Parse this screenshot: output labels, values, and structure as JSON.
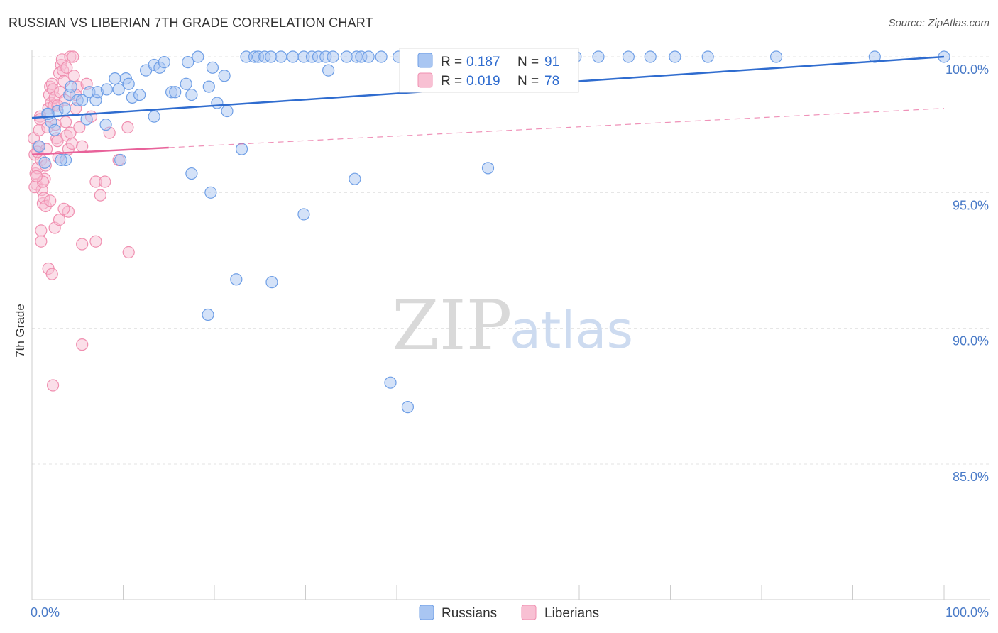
{
  "header": {
    "title": "RUSSIAN VS LIBERIAN 7TH GRADE CORRELATION CHART",
    "source": "Source: ZipAtlas.com"
  },
  "watermark": {
    "zip": "ZIP",
    "atlas": "atlas"
  },
  "colors": {
    "russians": "#6f9fe6",
    "russians_line": "#2f6ccf",
    "liberians": "#f08fb0",
    "liberians_line": "#e8629a",
    "tick_label": "#4a7bc8",
    "grid": "#e3e3e3"
  },
  "legend": {
    "russians": {
      "r_label": "R =",
      "r_value": "0.187",
      "n_label": "N =",
      "n_value": "91"
    },
    "liberians": {
      "r_label": "R =",
      "r_value": "0.019",
      "n_label": "N =",
      "n_value": "78"
    }
  },
  "chart_data": {
    "type": "scatter",
    "title": "RUSSIAN VS LIBERIAN 7TH GRADE CORRELATION CHART",
    "xlabel": "",
    "ylabel": "7th Grade",
    "xlim": [
      0,
      100
    ],
    "ylim": [
      80.5,
      100.5
    ],
    "x_tick_labels": [
      {
        "value": 0,
        "label": "0.0%"
      },
      {
        "value": 100,
        "label": "100.0%"
      }
    ],
    "x_minor_ticks": [
      10,
      20,
      30,
      40,
      50,
      60,
      70,
      80,
      90
    ],
    "y_ticks": [
      {
        "value": 100,
        "label": "100.0%"
      },
      {
        "value": 95,
        "label": "95.0%"
      },
      {
        "value": 90,
        "label": "90.0%"
      },
      {
        "value": 85,
        "label": "85.0%"
      }
    ],
    "series": [
      {
        "name": "Russians",
        "r": 0.187,
        "n": 91,
        "trend": {
          "x0": 0,
          "y0": 97.75,
          "x1": 100,
          "y1": 100.0,
          "solid_to": 100
        },
        "points": [
          [
            0.8,
            96.7
          ],
          [
            1.4,
            96.1
          ],
          [
            1.7,
            97.9
          ],
          [
            2.1,
            97.6
          ],
          [
            2.8,
            98.0
          ],
          [
            2.5,
            97.3
          ],
          [
            3.6,
            98.1
          ],
          [
            4.1,
            98.6
          ],
          [
            4.3,
            98.9
          ],
          [
            5.0,
            98.4
          ],
          [
            5.5,
            98.4
          ],
          [
            6.3,
            98.7
          ],
          [
            7.0,
            98.4
          ],
          [
            7.2,
            98.7
          ],
          [
            8.2,
            98.8
          ],
          [
            9.1,
            99.2
          ],
          [
            9.5,
            98.8
          ],
          [
            10.3,
            99.2
          ],
          [
            10.6,
            99.0
          ],
          [
            11.0,
            98.5
          ],
          [
            11.8,
            98.6
          ],
          [
            12.5,
            99.5
          ],
          [
            13.4,
            99.7
          ],
          [
            14.0,
            99.6
          ],
          [
            14.5,
            99.8
          ],
          [
            15.3,
            98.7
          ],
          [
            15.7,
            98.7
          ],
          [
            16.9,
            99.0
          ],
          [
            17.1,
            99.8
          ],
          [
            17.5,
            98.6
          ],
          [
            18.2,
            100.0
          ],
          [
            19.4,
            98.9
          ],
          [
            19.8,
            99.6
          ],
          [
            20.3,
            98.3
          ],
          [
            21.1,
            99.3
          ],
          [
            21.4,
            98.0
          ],
          [
            23.0,
            96.6
          ],
          [
            23.5,
            100.0
          ],
          [
            24.4,
            100.0
          ],
          [
            24.8,
            100.0
          ],
          [
            25.5,
            100.0
          ],
          [
            26.2,
            100.0
          ],
          [
            27.3,
            100.0
          ],
          [
            28.6,
            100.0
          ],
          [
            29.8,
            100.0
          ],
          [
            30.7,
            100.0
          ],
          [
            31.4,
            100.0
          ],
          [
            32.2,
            100.0
          ],
          [
            33.0,
            100.0
          ],
          [
            34.5,
            100.0
          ],
          [
            35.6,
            100.0
          ],
          [
            36.1,
            100.0
          ],
          [
            36.9,
            100.0
          ],
          [
            38.3,
            100.0
          ],
          [
            40.2,
            100.0
          ],
          [
            42.8,
            100.0
          ],
          [
            43.3,
            100.0
          ],
          [
            45.0,
            100.0
          ],
          [
            48.1,
            100.0
          ],
          [
            50.2,
            100.0
          ],
          [
            52.0,
            100.0
          ],
          [
            52.6,
            100.0
          ],
          [
            54.3,
            100.0
          ],
          [
            57.0,
            100.0
          ],
          [
            59.6,
            100.0
          ],
          [
            62.1,
            100.0
          ],
          [
            65.4,
            100.0
          ],
          [
            67.8,
            100.0
          ],
          [
            70.5,
            100.0
          ],
          [
            74.1,
            100.0
          ],
          [
            81.6,
            100.0
          ],
          [
            92.4,
            100.0
          ],
          [
            100.0,
            100.0
          ],
          [
            1.8,
            97.9
          ],
          [
            3.7,
            96.2
          ],
          [
            6.0,
            97.7
          ],
          [
            8.1,
            97.5
          ],
          [
            13.4,
            97.8
          ],
          [
            9.7,
            96.2
          ],
          [
            17.5,
            95.7
          ],
          [
            19.6,
            95.0
          ],
          [
            29.8,
            94.2
          ],
          [
            35.4,
            95.5
          ],
          [
            50.0,
            95.9
          ],
          [
            22.4,
            91.8
          ],
          [
            26.3,
            91.7
          ],
          [
            19.3,
            90.5
          ],
          [
            39.3,
            88.0
          ],
          [
            41.2,
            87.1
          ],
          [
            32.5,
            99.5
          ],
          [
            3.2,
            96.2
          ]
        ]
      },
      {
        "name": "Liberians",
        "r": 0.019,
        "n": 78,
        "trend": {
          "x0": 0,
          "y0": 96.4,
          "x1": 100,
          "y1": 98.1,
          "solid_to": 15
        },
        "points": [
          [
            0.2,
            97.0
          ],
          [
            0.3,
            96.4
          ],
          [
            0.4,
            95.7
          ],
          [
            0.5,
            95.3
          ],
          [
            0.6,
            95.9
          ],
          [
            0.7,
            96.7
          ],
          [
            0.8,
            97.3
          ],
          [
            0.9,
            97.8
          ],
          [
            1.0,
            96.2
          ],
          [
            1.1,
            95.1
          ],
          [
            1.2,
            94.6
          ],
          [
            1.3,
            94.8
          ],
          [
            1.4,
            95.5
          ],
          [
            1.5,
            96.0
          ],
          [
            1.6,
            96.6
          ],
          [
            1.7,
            97.4
          ],
          [
            1.8,
            98.1
          ],
          [
            1.9,
            98.6
          ],
          [
            2.0,
            98.9
          ],
          [
            2.1,
            98.3
          ],
          [
            2.2,
            99.0
          ],
          [
            2.3,
            98.8
          ],
          [
            2.4,
            98.2
          ],
          [
            2.5,
            98.5
          ],
          [
            2.6,
            97.5
          ],
          [
            2.7,
            97.0
          ],
          [
            2.8,
            96.9
          ],
          [
            2.9,
            96.3
          ],
          [
            3.0,
            99.4
          ],
          [
            3.1,
            98.7
          ],
          [
            3.2,
            99.7
          ],
          [
            3.3,
            99.9
          ],
          [
            3.4,
            99.5
          ],
          [
            3.5,
            99.1
          ],
          [
            3.6,
            98.4
          ],
          [
            3.7,
            97.6
          ],
          [
            3.8,
            97.1
          ],
          [
            4.0,
            96.6
          ],
          [
            4.2,
            97.2
          ],
          [
            4.4,
            96.8
          ],
          [
            4.6,
            99.3
          ],
          [
            4.8,
            98.1
          ],
          [
            5.0,
            98.9
          ],
          [
            5.2,
            97.4
          ],
          [
            5.5,
            96.7
          ],
          [
            6.0,
            99.0
          ],
          [
            6.5,
            97.8
          ],
          [
            7.0,
            95.4
          ],
          [
            7.5,
            94.9
          ],
          [
            8.0,
            95.4
          ],
          [
            8.5,
            97.2
          ],
          [
            9.5,
            96.2
          ],
          [
            10.5,
            97.4
          ],
          [
            0.3,
            95.2
          ],
          [
            0.6,
            96.5
          ],
          [
            0.9,
            97.7
          ],
          [
            1.2,
            95.4
          ],
          [
            1.5,
            94.5
          ],
          [
            2.0,
            94.7
          ],
          [
            2.5,
            93.7
          ],
          [
            3.0,
            94.0
          ],
          [
            4.0,
            94.3
          ],
          [
            5.5,
            93.1
          ],
          [
            7.0,
            93.2
          ],
          [
            1.0,
            93.6
          ],
          [
            1.0,
            93.2
          ],
          [
            3.5,
            94.4
          ],
          [
            10.6,
            92.8
          ],
          [
            1.8,
            92.2
          ],
          [
            2.2,
            92.0
          ],
          [
            5.5,
            89.4
          ],
          [
            2.3,
            87.9
          ],
          [
            4.2,
            100.0
          ],
          [
            4.5,
            100.0
          ],
          [
            3.8,
            99.6
          ],
          [
            4.8,
            98.6
          ],
          [
            2.8,
            98.2
          ],
          [
            0.5,
            95.6
          ]
        ]
      }
    ]
  },
  "bottom_legend": [
    "Russians",
    "Liberians"
  ]
}
